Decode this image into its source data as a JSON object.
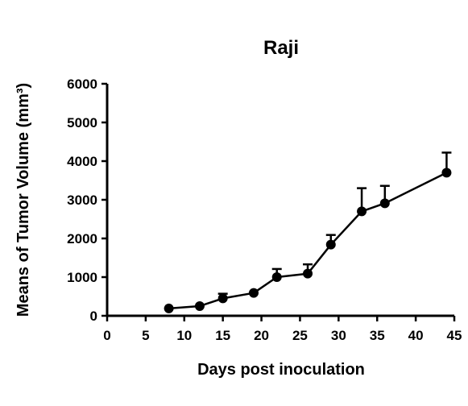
{
  "chart_data": {
    "type": "line",
    "title": "Raji",
    "xlabel": "Days post inoculation",
    "ylabel": "Means of Tumor Volume (mm³)",
    "xlim": [
      0,
      45
    ],
    "ylim": [
      0,
      6000
    ],
    "xticks": [
      0,
      5,
      10,
      15,
      20,
      25,
      30,
      35,
      40,
      45
    ],
    "yticks": [
      0,
      1000,
      2000,
      3000,
      4000,
      5000,
      6000
    ],
    "grid": false,
    "legend": "none",
    "series": [
      {
        "color": "#000000",
        "marker": "circle",
        "x": [
          8,
          12,
          15,
          19,
          22,
          26,
          29,
          33,
          36,
          44
        ],
        "y": [
          190,
          250,
          450,
          590,
          1000,
          1090,
          1840,
          2700,
          2910,
          3700
        ],
        "error_upper": [
          0,
          0,
          120,
          0,
          210,
          240,
          250,
          600,
          450,
          520
        ]
      }
    ]
  }
}
